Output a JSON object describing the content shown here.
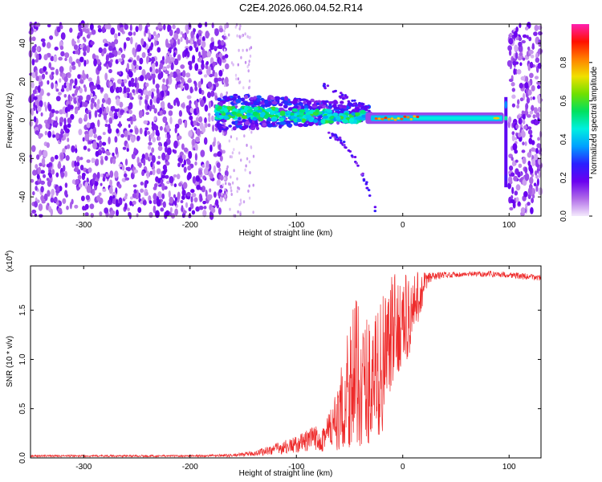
{
  "title": "C2E4.2026.060.04.52.R14",
  "chart_data": [
    {
      "type": "heatmap",
      "panel": "spectrogram",
      "xlabel": "Height of straight line (km)",
      "ylabel": "Frequency (Hz)",
      "xlim": [
        -350,
        130
      ],
      "ylim": [
        -50,
        50
      ],
      "xticks": [
        -300,
        -200,
        -100,
        0,
        100
      ],
      "xtick_labels": [
        "-300",
        "-200",
        "-100",
        "0",
        "100"
      ],
      "yticks": [
        -40,
        -20,
        0,
        20,
        40
      ],
      "ytick_labels": [
        "-40",
        "-20",
        "0",
        "20",
        "40"
      ],
      "colorbar": {
        "label": "Normalized spectral amplitude",
        "range": [
          0,
          1
        ],
        "ticks": [
          0.0,
          0.2,
          0.4,
          0.6,
          0.8
        ],
        "tick_labels": [
          "0.0",
          "0.2",
          "0.4",
          "0.6",
          "0.8"
        ],
        "colors": [
          "#f4eafc",
          "#b06be8",
          "#6a00f0",
          "#2a20ff",
          "#00a0ff",
          "#00f0e0",
          "#00e060",
          "#70e000",
          "#f0e000",
          "#ff8000",
          "#ff1000",
          "#ff20b0"
        ]
      },
      "regions": [
        {
          "name": "noise-left",
          "x_range": [
            -350,
            -165
          ],
          "freq_range": [
            -50,
            50
          ],
          "amplitude": 0.1
        },
        {
          "name": "signal-track",
          "x_range": [
            -175,
            95
          ],
          "center_freq_hz": 1,
          "amplitude": 0.6
        },
        {
          "name": "upper-branch",
          "x_range": [
            -75,
            -30
          ],
          "freq_start_hz": 18,
          "freq_end_hz": 5
        },
        {
          "name": "lower-branch",
          "x_range": [
            -70,
            -25
          ],
          "freq_start_hz": -8,
          "freq_end_hz": -48
        },
        {
          "name": "spike",
          "x_center": 97,
          "freq_range": [
            -35,
            12
          ]
        },
        {
          "name": "noise-right",
          "x_range": [
            100,
            130
          ],
          "freq_range": [
            -50,
            50
          ],
          "amplitude": 0.1
        }
      ]
    },
    {
      "type": "line",
      "panel": "snr",
      "xlabel": "Height of straight line (km)",
      "ylabel": "SNR (10 * v/v)",
      "y_scale_note": "(x10",
      "y_scale_exp": "4",
      "xlim": [
        -350,
        130
      ],
      "ylim": [
        0,
        1.95
      ],
      "xticks": [
        -300,
        -200,
        -100,
        0,
        100
      ],
      "xtick_labels": [
        "-300",
        "-200",
        "-100",
        "0",
        "100"
      ],
      "yticks": [
        0.0,
        0.5,
        1.0,
        1.5
      ],
      "ytick_labels": [
        "0.0",
        "0.5",
        "1.0",
        "1.5"
      ],
      "line_color": "#ee2a2a",
      "envelope": {
        "x": [
          -350,
          -200,
          -160,
          -140,
          -120,
          -100,
          -80,
          -60,
          -50,
          -40,
          -30,
          -20,
          -15,
          -10,
          -5,
          0,
          5,
          10,
          15,
          20,
          25,
          30,
          40,
          60,
          80,
          100,
          120,
          130
        ],
        "low": [
          0.01,
          0.01,
          0.01,
          0.02,
          0.03,
          0.05,
          0.06,
          0.08,
          0.1,
          0.12,
          0.15,
          0.22,
          0.5,
          0.7,
          0.85,
          0.95,
          1.0,
          1.15,
          1.4,
          1.6,
          1.75,
          1.8,
          1.83,
          1.84,
          1.84,
          1.83,
          1.8,
          1.8
        ],
        "high": [
          0.03,
          0.03,
          0.04,
          0.07,
          0.15,
          0.22,
          0.35,
          0.7,
          1.7,
          1.55,
          1.45,
          1.65,
          1.75,
          1.85,
          1.88,
          1.89,
          1.9,
          1.9,
          1.9,
          1.9,
          1.9,
          1.89,
          1.89,
          1.89,
          1.9,
          1.89,
          1.87,
          1.86
        ]
      }
    }
  ]
}
